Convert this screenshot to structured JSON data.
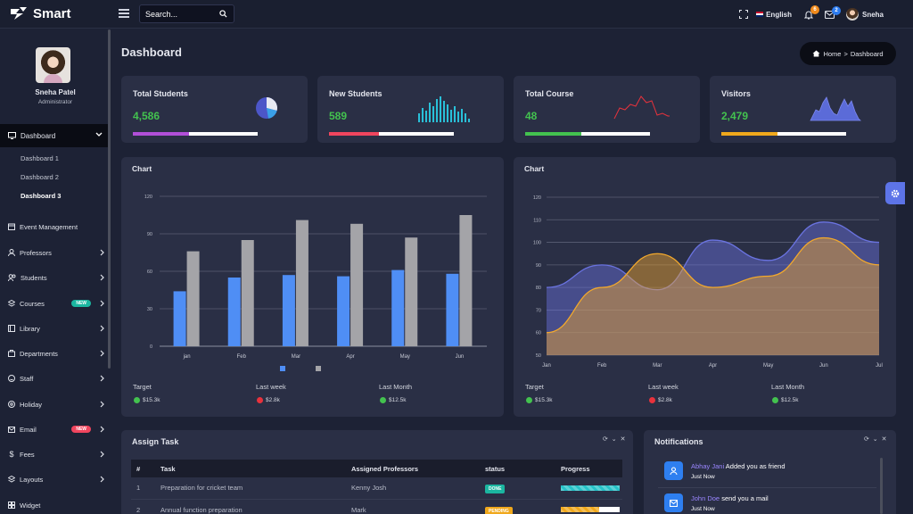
{
  "brand": {
    "name": "Smart"
  },
  "search": {
    "placeholder": "Search..."
  },
  "topbar": {
    "language": "English",
    "notification_count": "6",
    "mail_count": "2",
    "user_name": "Sneha"
  },
  "colors": {
    "accent": "#43c24f",
    "notif_badge": "#f08a1c",
    "mail_badge": "#2d7cf0",
    "bar_blue": "#4f8ef5",
    "bar_gray": "#a4a4a8"
  },
  "profile": {
    "name": "Sneha Patel",
    "role": "Administrator"
  },
  "sidebar": {
    "active": "Dashboard",
    "sub": [
      "Dashboard 1",
      "Dashboard 2",
      "Dashboard 3"
    ],
    "items": [
      {
        "label": "Event Management",
        "icon": "calendar-icon"
      },
      {
        "label": "Professors",
        "icon": "user-icon"
      },
      {
        "label": "Students",
        "icon": "users-icon"
      },
      {
        "label": "Courses",
        "icon": "layers-icon",
        "pill": "NEW"
      },
      {
        "label": "Library",
        "icon": "book-icon"
      },
      {
        "label": "Departments",
        "icon": "briefcase-icon"
      },
      {
        "label": "Staff",
        "icon": "smile-icon"
      },
      {
        "label": "Holiday",
        "icon": "sun-icon"
      },
      {
        "label": "Email",
        "icon": "mail-icon",
        "pill": "NEW"
      },
      {
        "label": "Fees",
        "icon": "dollar-icon"
      },
      {
        "label": "Layouts",
        "icon": "stack-icon"
      },
      {
        "label": "Widget",
        "icon": "grid-icon"
      }
    ]
  },
  "page": {
    "title": "Dashboard",
    "breadcrumb_home": "Home",
    "breadcrumb_current": "Dashboard"
  },
  "stats": [
    {
      "label": "Total Students",
      "value": "4,586",
      "progress": 45,
      "color": "#b14fd8"
    },
    {
      "label": "New Students",
      "value": "589",
      "progress": 40,
      "color": "#f0455e"
    },
    {
      "label": "Total Course",
      "value": "48",
      "progress": 45,
      "color": "#43c24f"
    },
    {
      "label": "Visitors",
      "value": "2,479",
      "progress": 45,
      "color": "#f0a81c"
    }
  ],
  "chart_left": {
    "title": "Chart",
    "summary": [
      {
        "label": "Target",
        "value": "$15.3k",
        "dir": "up"
      },
      {
        "label": "Last week",
        "value": "$2.8k",
        "dir": "down"
      },
      {
        "label": "Last Month",
        "value": "$12.5k",
        "dir": "up"
      }
    ]
  },
  "chart_right": {
    "title": "Chart",
    "summary": [
      {
        "label": "Target",
        "value": "$15.3k",
        "dir": "up"
      },
      {
        "label": "Last week",
        "value": "$2.8k",
        "dir": "down"
      },
      {
        "label": "Last Month",
        "value": "$12.5k",
        "dir": "up"
      }
    ]
  },
  "chart_data": [
    {
      "type": "bar",
      "title": "Chart",
      "categories": [
        "jan",
        "Feb",
        "Mar",
        "Apr",
        "May",
        "Jun"
      ],
      "yticks": [
        "0",
        "30",
        "60",
        "90",
        "120"
      ],
      "ylim": [
        0,
        120
      ],
      "series": [
        {
          "color": "#4f8ef5",
          "values": [
            44,
            55,
            57,
            56,
            61,
            58
          ]
        },
        {
          "color": "#a4a4a8",
          "values": [
            76,
            85,
            101,
            98,
            87,
            105
          ]
        }
      ],
      "grid": true,
      "legend": "bottom"
    },
    {
      "type": "area",
      "title": "Chart",
      "categories": [
        "Jan",
        "Feb",
        "Mar",
        "Apr",
        "May",
        "Jun",
        "Jul"
      ],
      "yticks": [
        "50",
        "60",
        "70",
        "80",
        "90",
        "100",
        "110",
        "120"
      ],
      "ylim": [
        50,
        120
      ],
      "series": [
        {
          "color": "#6a73e0",
          "values": [
            80,
            90,
            79,
            101,
            92,
            109,
            100
          ]
        },
        {
          "color": "#f3a92c",
          "values": [
            60,
            80,
            95,
            80,
            85,
            102,
            90
          ]
        }
      ],
      "grid": true
    }
  ],
  "tasks": {
    "title": "Assign Task",
    "headers": [
      "#",
      "Task",
      "Assigned Professors",
      "status",
      "Progress"
    ],
    "rows": [
      {
        "num": "1",
        "task": "Preparation for cricket team",
        "prof": "Kenny Josh",
        "status": "DONE",
        "status_color": "#1bb6a0",
        "progress": 100,
        "prog_color": "#26c2c8"
      },
      {
        "num": "2",
        "task": "Annual function preparation",
        "prof": "Mark",
        "status": "PENDING",
        "status_color": "#f0a81c",
        "progress": 65,
        "prog_color": "#f0a81c"
      }
    ]
  },
  "notifications": {
    "title": "Notifications",
    "items": [
      {
        "who": "Abhay Jani",
        "text": " Added you as friend",
        "time": "Just Now",
        "icon": "user-icon"
      },
      {
        "who": "John Doe",
        "text": " send you a mail",
        "time": "Just Now",
        "icon": "mail-icon"
      }
    ]
  }
}
